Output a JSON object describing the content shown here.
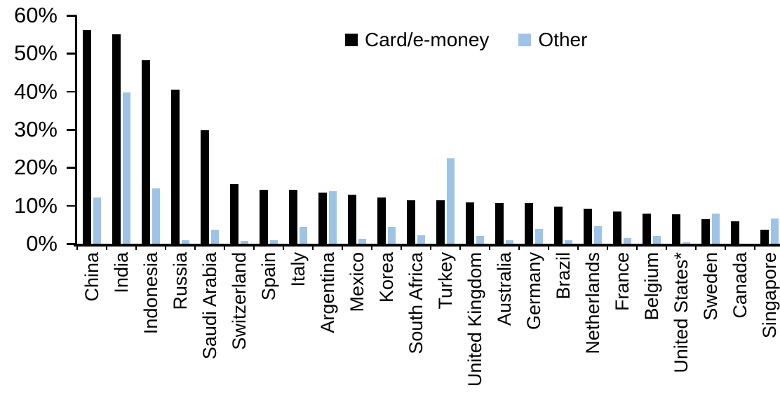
{
  "chart_data": {
    "type": "bar",
    "title": "",
    "xlabel": "",
    "ylabel": "",
    "categories": [
      "China",
      "India",
      "Indonesia",
      "Russia",
      "Saudi Arabia",
      "Switzerland",
      "Spain",
      "Italy",
      "Argentina",
      "Mexico",
      "Korea",
      "South Africa",
      "Turkey",
      "United Kingdom",
      "Australia",
      "Germany",
      "Brazil",
      "Netherlands",
      "France",
      "Belgium",
      "United States*",
      "Sweden",
      "Canada",
      "Singapore"
    ],
    "series": [
      {
        "name": "Card/e-money",
        "color": "#000000",
        "values": [
          56.2,
          55.0,
          48.2,
          40.5,
          29.8,
          15.6,
          14.2,
          14.1,
          13.4,
          12.8,
          12.1,
          11.5,
          11.5,
          10.8,
          10.7,
          10.6,
          9.8,
          9.2,
          8.5,
          7.9,
          7.8,
          6.4,
          5.8,
          3.7
        ]
      },
      {
        "name": "Other",
        "color": "#9DC3E6",
        "values": [
          12.2,
          39.7,
          14.5,
          1.0,
          3.7,
          0.7,
          0.9,
          4.4,
          13.8,
          1.2,
          4.4,
          2.2,
          22.4,
          2.1,
          1.0,
          3.8,
          1.0,
          4.6,
          1.4,
          2.0,
          0.3,
          8.0,
          0.0,
          6.6
        ]
      }
    ],
    "yticks": [
      "0%",
      "10%",
      "20%",
      "30%",
      "40%",
      "50%",
      "60%"
    ],
    "ylim": [
      0,
      60
    ],
    "grid": false,
    "legend_position": "top-center",
    "axis_color": "#000000",
    "background_color": "#ffffff"
  }
}
